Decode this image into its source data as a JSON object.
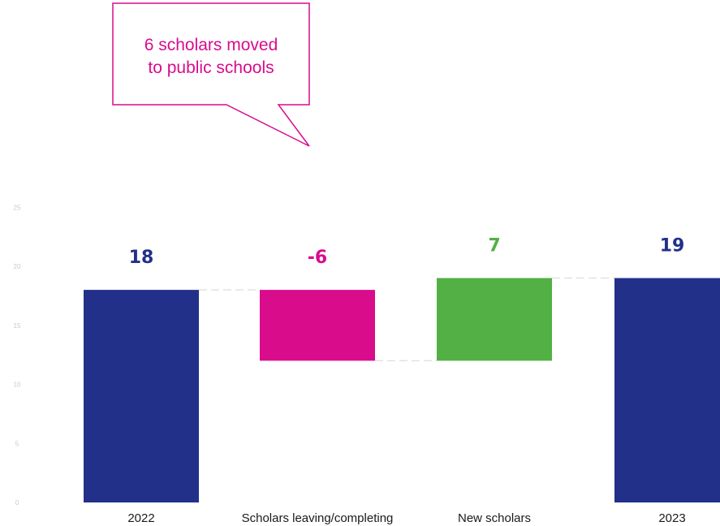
{
  "chart_data": {
    "type": "bar",
    "subtype": "waterfall",
    "categories": [
      "2022",
      "Scholars leaving/completing",
      "New scholars",
      "2023"
    ],
    "values": [
      18,
      -6,
      7,
      19
    ],
    "value_labels": [
      "18",
      "-6",
      "7",
      "19"
    ],
    "bar_kinds": [
      "total",
      "delta",
      "delta",
      "total"
    ],
    "colors": [
      "#22308a",
      "#d90c8c",
      "#52b044",
      "#22308a"
    ],
    "ylim": [
      0,
      25
    ],
    "yticks": [
      "0",
      "5",
      "10",
      "15",
      "20",
      "25"
    ],
    "grid": false,
    "connectors": true,
    "annotation": {
      "lines": [
        "6 scholars moved",
        "to public schools"
      ],
      "color": "#d90c8c",
      "target_category": "Scholars leaving/completing"
    }
  }
}
